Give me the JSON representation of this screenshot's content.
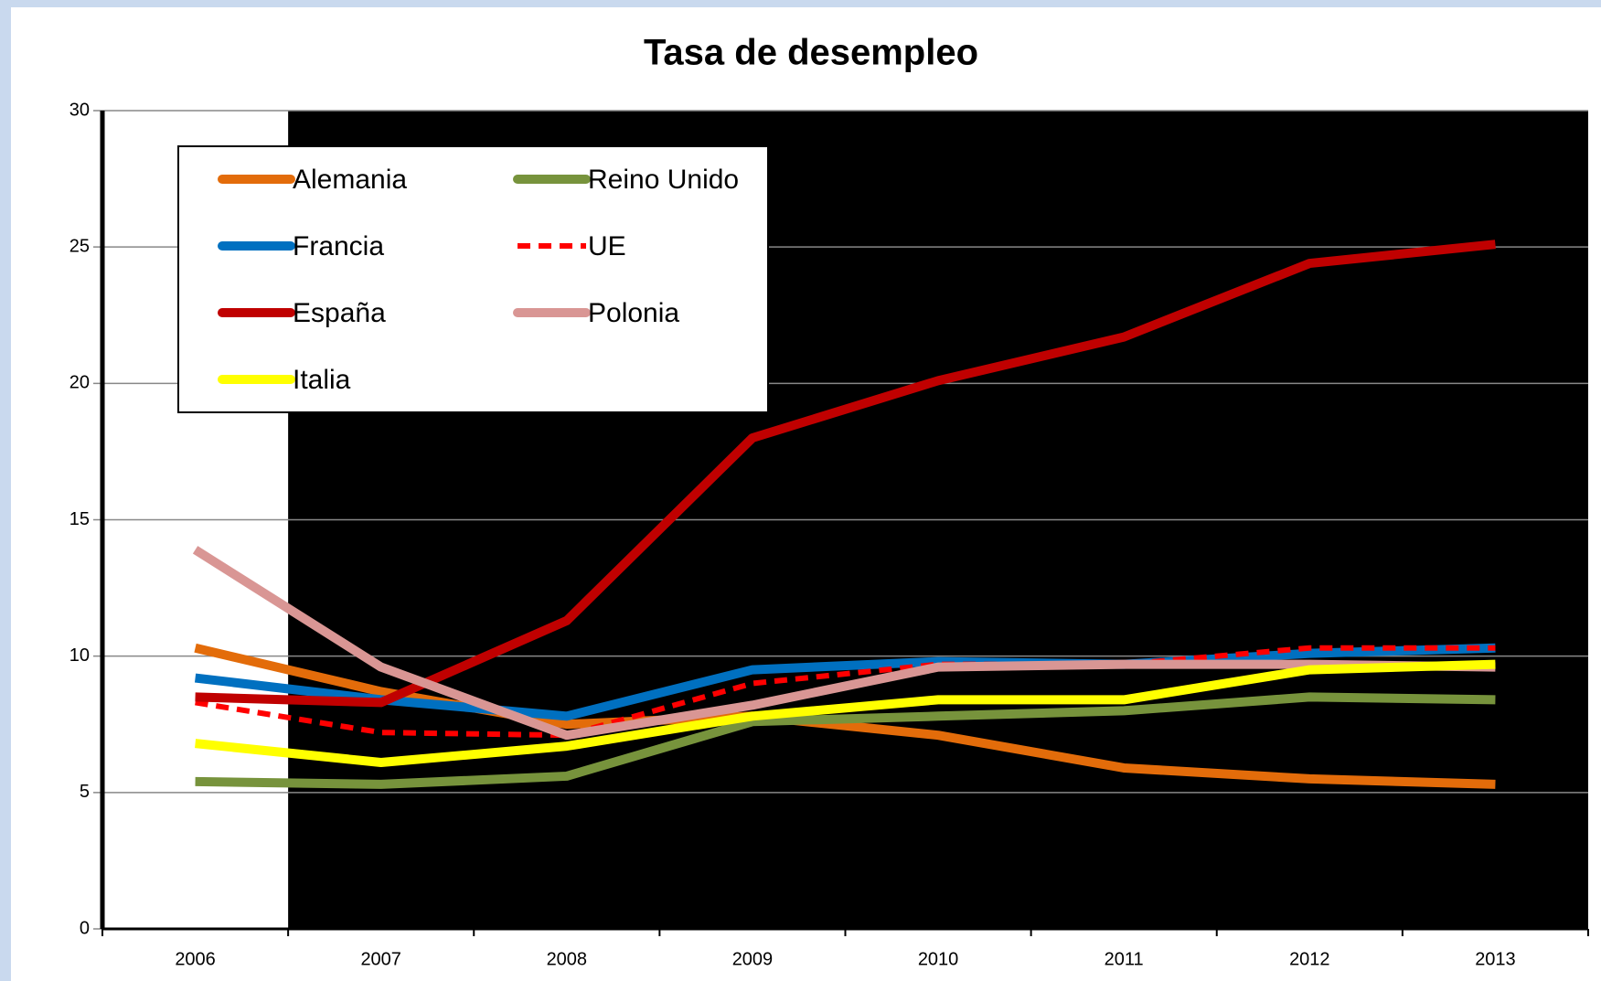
{
  "chart_data": {
    "type": "line",
    "title": "Tasa de desempleo",
    "categories": [
      "2006",
      "2007",
      "2008",
      "2009",
      "2010",
      "2011",
      "2012",
      "2013"
    ],
    "ylim": [
      0,
      30
    ],
    "yticks": [
      0,
      5,
      10,
      15,
      20,
      25,
      30
    ],
    "grid": true,
    "legend": "top-left",
    "series": [
      {
        "name": "Alemania",
        "color": "#e36c0a",
        "values": [
          10.3,
          8.7,
          7.5,
          7.8,
          7.1,
          5.9,
          5.5,
          5.3
        ]
      },
      {
        "name": "Reino Unido",
        "color": "#77933c",
        "values": [
          5.4,
          5.3,
          5.6,
          7.6,
          7.8,
          8.0,
          8.5,
          8.4
        ]
      },
      {
        "name": "Francia",
        "color": "#0070c0",
        "values": [
          9.2,
          8.4,
          7.8,
          9.5,
          9.8,
          9.7,
          10.1,
          10.3
        ]
      },
      {
        "name": "UE",
        "color": "#ff0000",
        "dash": "dashed",
        "values": [
          8.3,
          7.2,
          7.1,
          9.0,
          9.7,
          9.7,
          10.3,
          10.3
        ]
      },
      {
        "name": "España",
        "color": "#c00000",
        "values": [
          8.5,
          8.3,
          11.3,
          18.0,
          20.1,
          21.7,
          24.4,
          25.1
        ]
      },
      {
        "name": "Polonia",
        "color": "#d99694",
        "values": [
          13.9,
          9.6,
          7.1,
          8.2,
          9.6,
          9.7,
          9.7,
          9.6
        ]
      },
      {
        "name": "Italia",
        "color": "#ffff00",
        "values": [
          6.8,
          6.1,
          6.7,
          7.8,
          8.4,
          8.4,
          9.5,
          9.7
        ]
      }
    ]
  }
}
